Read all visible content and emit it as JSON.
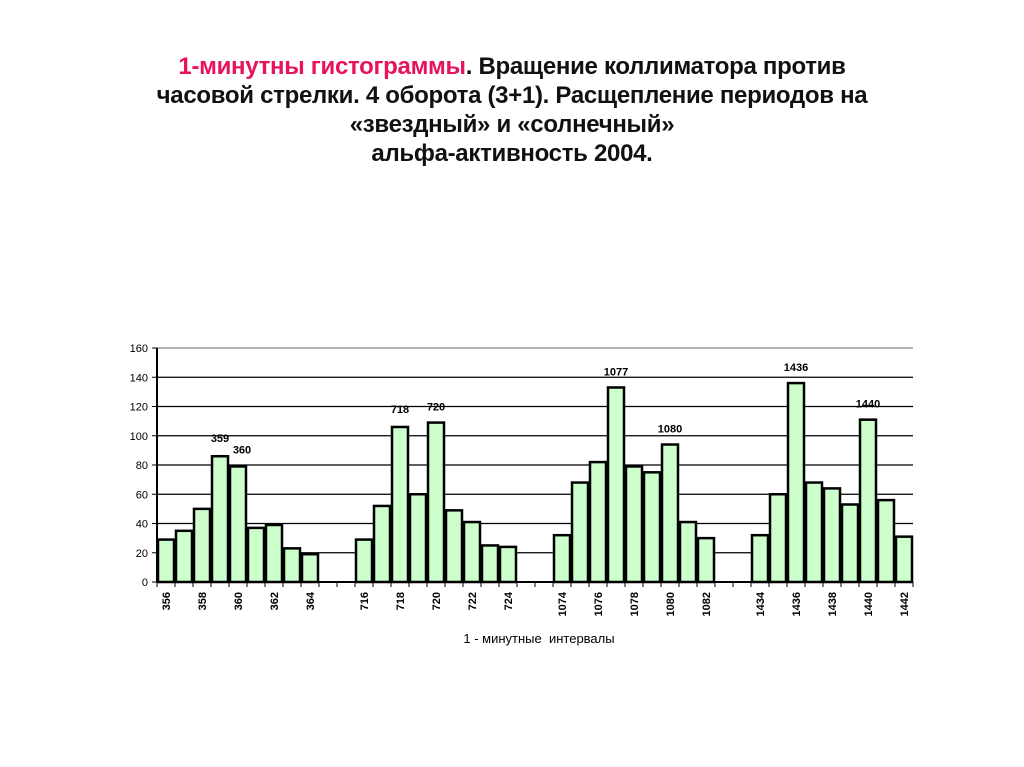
{
  "title": {
    "highlight": "1-минутны гистограммы",
    "line1_rest": ". Вращение коллиматора против",
    "line2": "часовой стрелки. 4 оборота (3+1). Расщепление периодов на",
    "line3": "«звездный» и «солнечный»",
    "line4": "альфа-активность 2004."
  },
  "colors": {
    "highlight": "#e8135f",
    "bar_fill": "#ccffcc",
    "bar_stroke": "#000000",
    "grid": "#000000"
  },
  "chart_data": {
    "type": "bar",
    "title": "1-минутны гистограммы. Вращение коллиматора против часовой стрелки. 4 оборота (3+1). Расщепление периодов на «звездный» и «солнечный» альфа-активность 2004.",
    "xlabel": "1 - минутные  интервалы",
    "ylabel": "",
    "ylim": [
      0,
      160
    ],
    "yticks": [
      0,
      20,
      40,
      60,
      80,
      100,
      120,
      140,
      160
    ],
    "grid": true,
    "legend": null,
    "groups": [
      {
        "categories": [
          "356",
          "357",
          "358",
          "359",
          "360",
          "361",
          "362",
          "363",
          "364"
        ],
        "values": [
          29,
          35,
          50,
          86,
          79,
          37,
          39,
          23,
          19
        ],
        "tick_labels": [
          "356",
          "358",
          "360",
          "362",
          "364"
        ],
        "annotations": [
          {
            "x": "359",
            "label": "359"
          },
          {
            "x": "360",
            "label": "360"
          }
        ]
      },
      {
        "categories": [
          "716",
          "717",
          "718",
          "719",
          "720",
          "721",
          "722",
          "723",
          "724"
        ],
        "values": [
          29,
          52,
          106,
          60,
          109,
          49,
          41,
          25,
          24
        ],
        "tick_labels": [
          "716",
          "718",
          "720",
          "722",
          "724"
        ],
        "annotations": [
          {
            "x": "718",
            "label": "718"
          },
          {
            "x": "720",
            "label": "720"
          }
        ]
      },
      {
        "categories": [
          "1074",
          "1075",
          "1076",
          "1077",
          "1078",
          "1079",
          "1080",
          "1081",
          "1082"
        ],
        "values": [
          32,
          68,
          82,
          133,
          79,
          75,
          94,
          41,
          30
        ],
        "tick_labels": [
          "1074",
          "1076",
          "1078",
          "1080",
          "1082"
        ],
        "annotations": [
          {
            "x": "1077",
            "label": "1077"
          },
          {
            "x": "1080",
            "label": "1080"
          }
        ]
      },
      {
        "categories": [
          "1434",
          "1435",
          "1436",
          "1437",
          "1438",
          "1439",
          "1440",
          "1441",
          "1442"
        ],
        "values": [
          32,
          60,
          136,
          68,
          64,
          53,
          111,
          56,
          31
        ],
        "tick_labels": [
          "1434",
          "1436",
          "1438",
          "1440",
          "1442"
        ],
        "annotations": [
          {
            "x": "1436",
            "label": "1436"
          },
          {
            "x": "1440",
            "label": "1440"
          }
        ]
      }
    ]
  }
}
